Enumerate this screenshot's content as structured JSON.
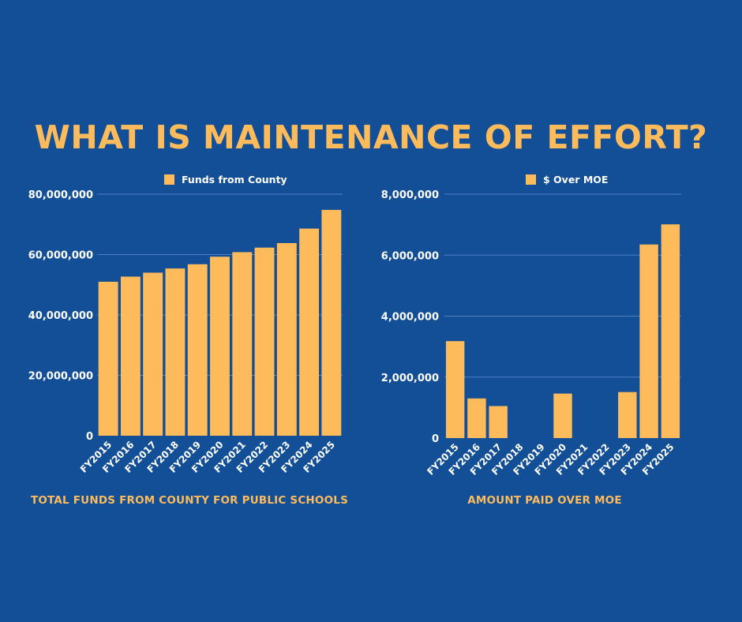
{
  "headline": "WHAT IS MAINTENANCE OF EFFORT?",
  "colors": {
    "background": "#134f97",
    "bar": "#fdbb5c",
    "accent_text": "#fdbb5c",
    "gridline": "#4f7fc0",
    "axis_text": "#ffffff"
  },
  "chart_data": [
    {
      "type": "bar",
      "legend_label": "Funds from County",
      "legend_position": "top-center",
      "caption": "TOTAL FUNDS FROM COUNTY FOR PUBLIC SCHOOLS",
      "categories": [
        "FY2015",
        "FY2016",
        "FY2017",
        "FY2018",
        "FY2019",
        "FY2020",
        "FY2021",
        "FY2022",
        "FY2023",
        "FY2024",
        "FY2025"
      ],
      "series": [
        {
          "name": "Funds from County",
          "values": [
            51000000,
            52700000,
            54000000,
            55400000,
            56800000,
            59300000,
            60800000,
            62300000,
            63800000,
            68600000,
            74800000
          ]
        }
      ],
      "y_ticks": [
        "0",
        "20,000,000",
        "40,000,000",
        "60,000,000",
        "80,000,000"
      ],
      "ylim": [
        0,
        80000000
      ],
      "grid": true
    },
    {
      "type": "bar",
      "legend_label": "$ Over MOE",
      "legend_position": "top-center",
      "caption": "AMOUNT PAID OVER MOE",
      "categories": [
        "FY2015",
        "FY2016",
        "FY2017",
        "FY2018",
        "FY2019",
        "FY2020",
        "FY2021",
        "FY2022",
        "FY2023",
        "FY2024",
        "FY2025"
      ],
      "series": [
        {
          "name": "$ Over MOE",
          "values": [
            3180000,
            1300000,
            1050000,
            0,
            0,
            1460000,
            0,
            0,
            1510000,
            6350000,
            7010000
          ]
        }
      ],
      "y_ticks": [
        "0",
        "2,000,000",
        "4,000,000",
        "6,000,000",
        "8,000,000"
      ],
      "ylim": [
        0,
        8000000
      ],
      "grid": true
    }
  ]
}
